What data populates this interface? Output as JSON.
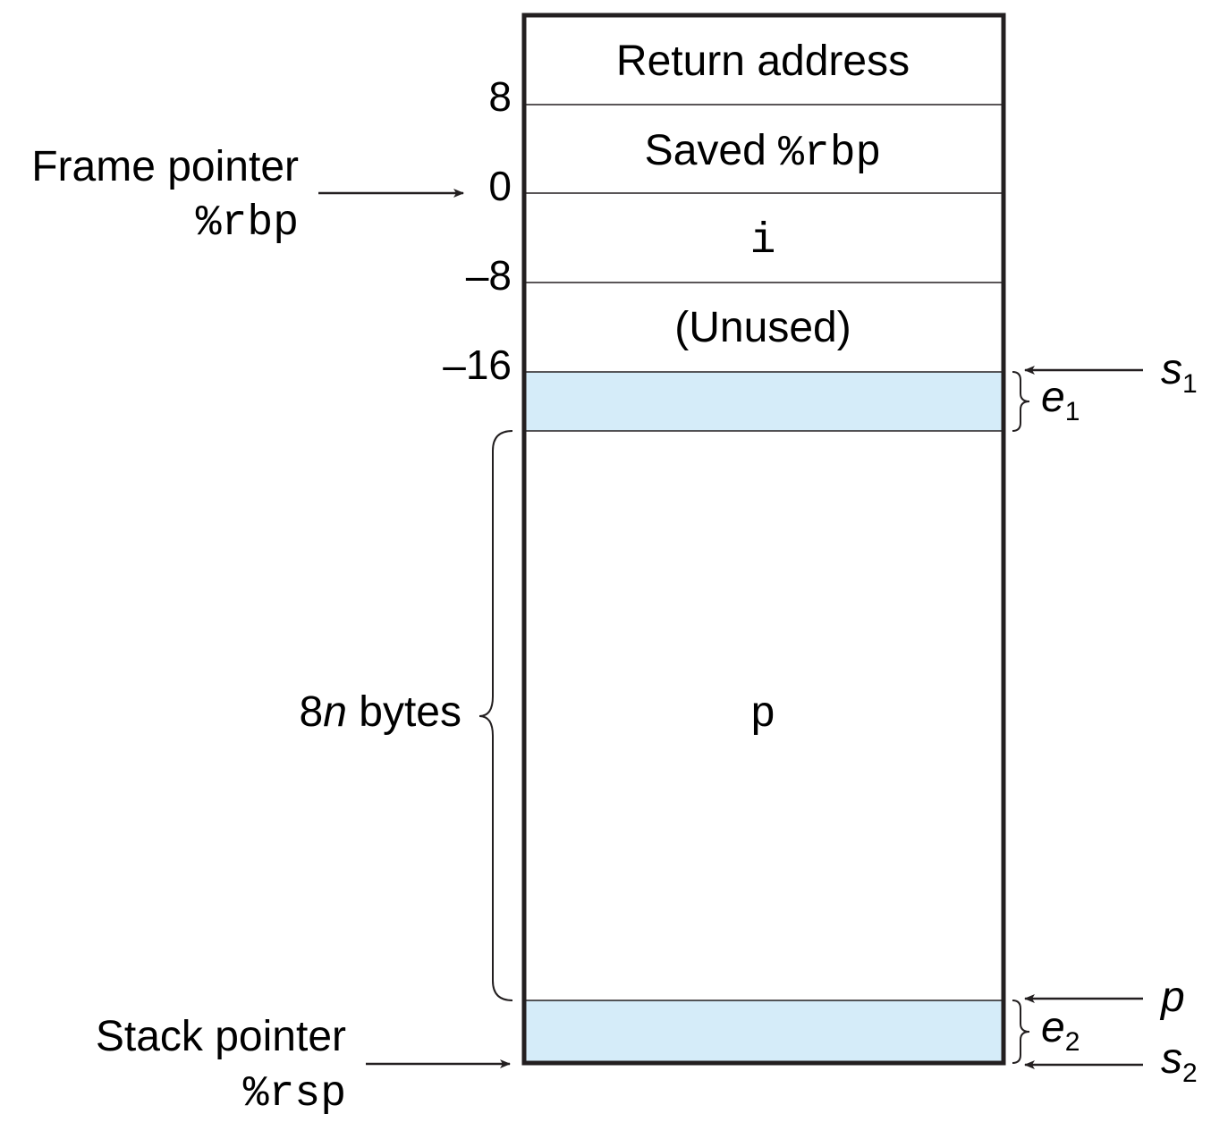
{
  "cells": {
    "return_address": "Return address",
    "saved_rbp_prefix": "Saved ",
    "saved_rbp_reg": "%rbp",
    "i": "i",
    "unused": "(Unused)",
    "p": "p"
  },
  "offsets": {
    "o8": "8",
    "o0": "0",
    "om8": "–8",
    "om16": "–16"
  },
  "frame_pointer": {
    "label": "Frame pointer",
    "reg": "%rbp"
  },
  "stack_pointer": {
    "label": "Stack pointer",
    "reg": "%rsp"
  },
  "brace_8n": {
    "prefix": "8",
    "var": "n",
    "suffix": " bytes"
  },
  "right_labels": {
    "s1": {
      "base": "s",
      "sub": "1"
    },
    "e1": {
      "base": "e",
      "sub": "1"
    },
    "p": {
      "base": "p"
    },
    "e2": {
      "base": "e",
      "sub": "2"
    },
    "s2": {
      "base": "s",
      "sub": "2"
    }
  },
  "colors": {
    "padding_fill": "#d5ecf9",
    "line": "#231f20"
  }
}
